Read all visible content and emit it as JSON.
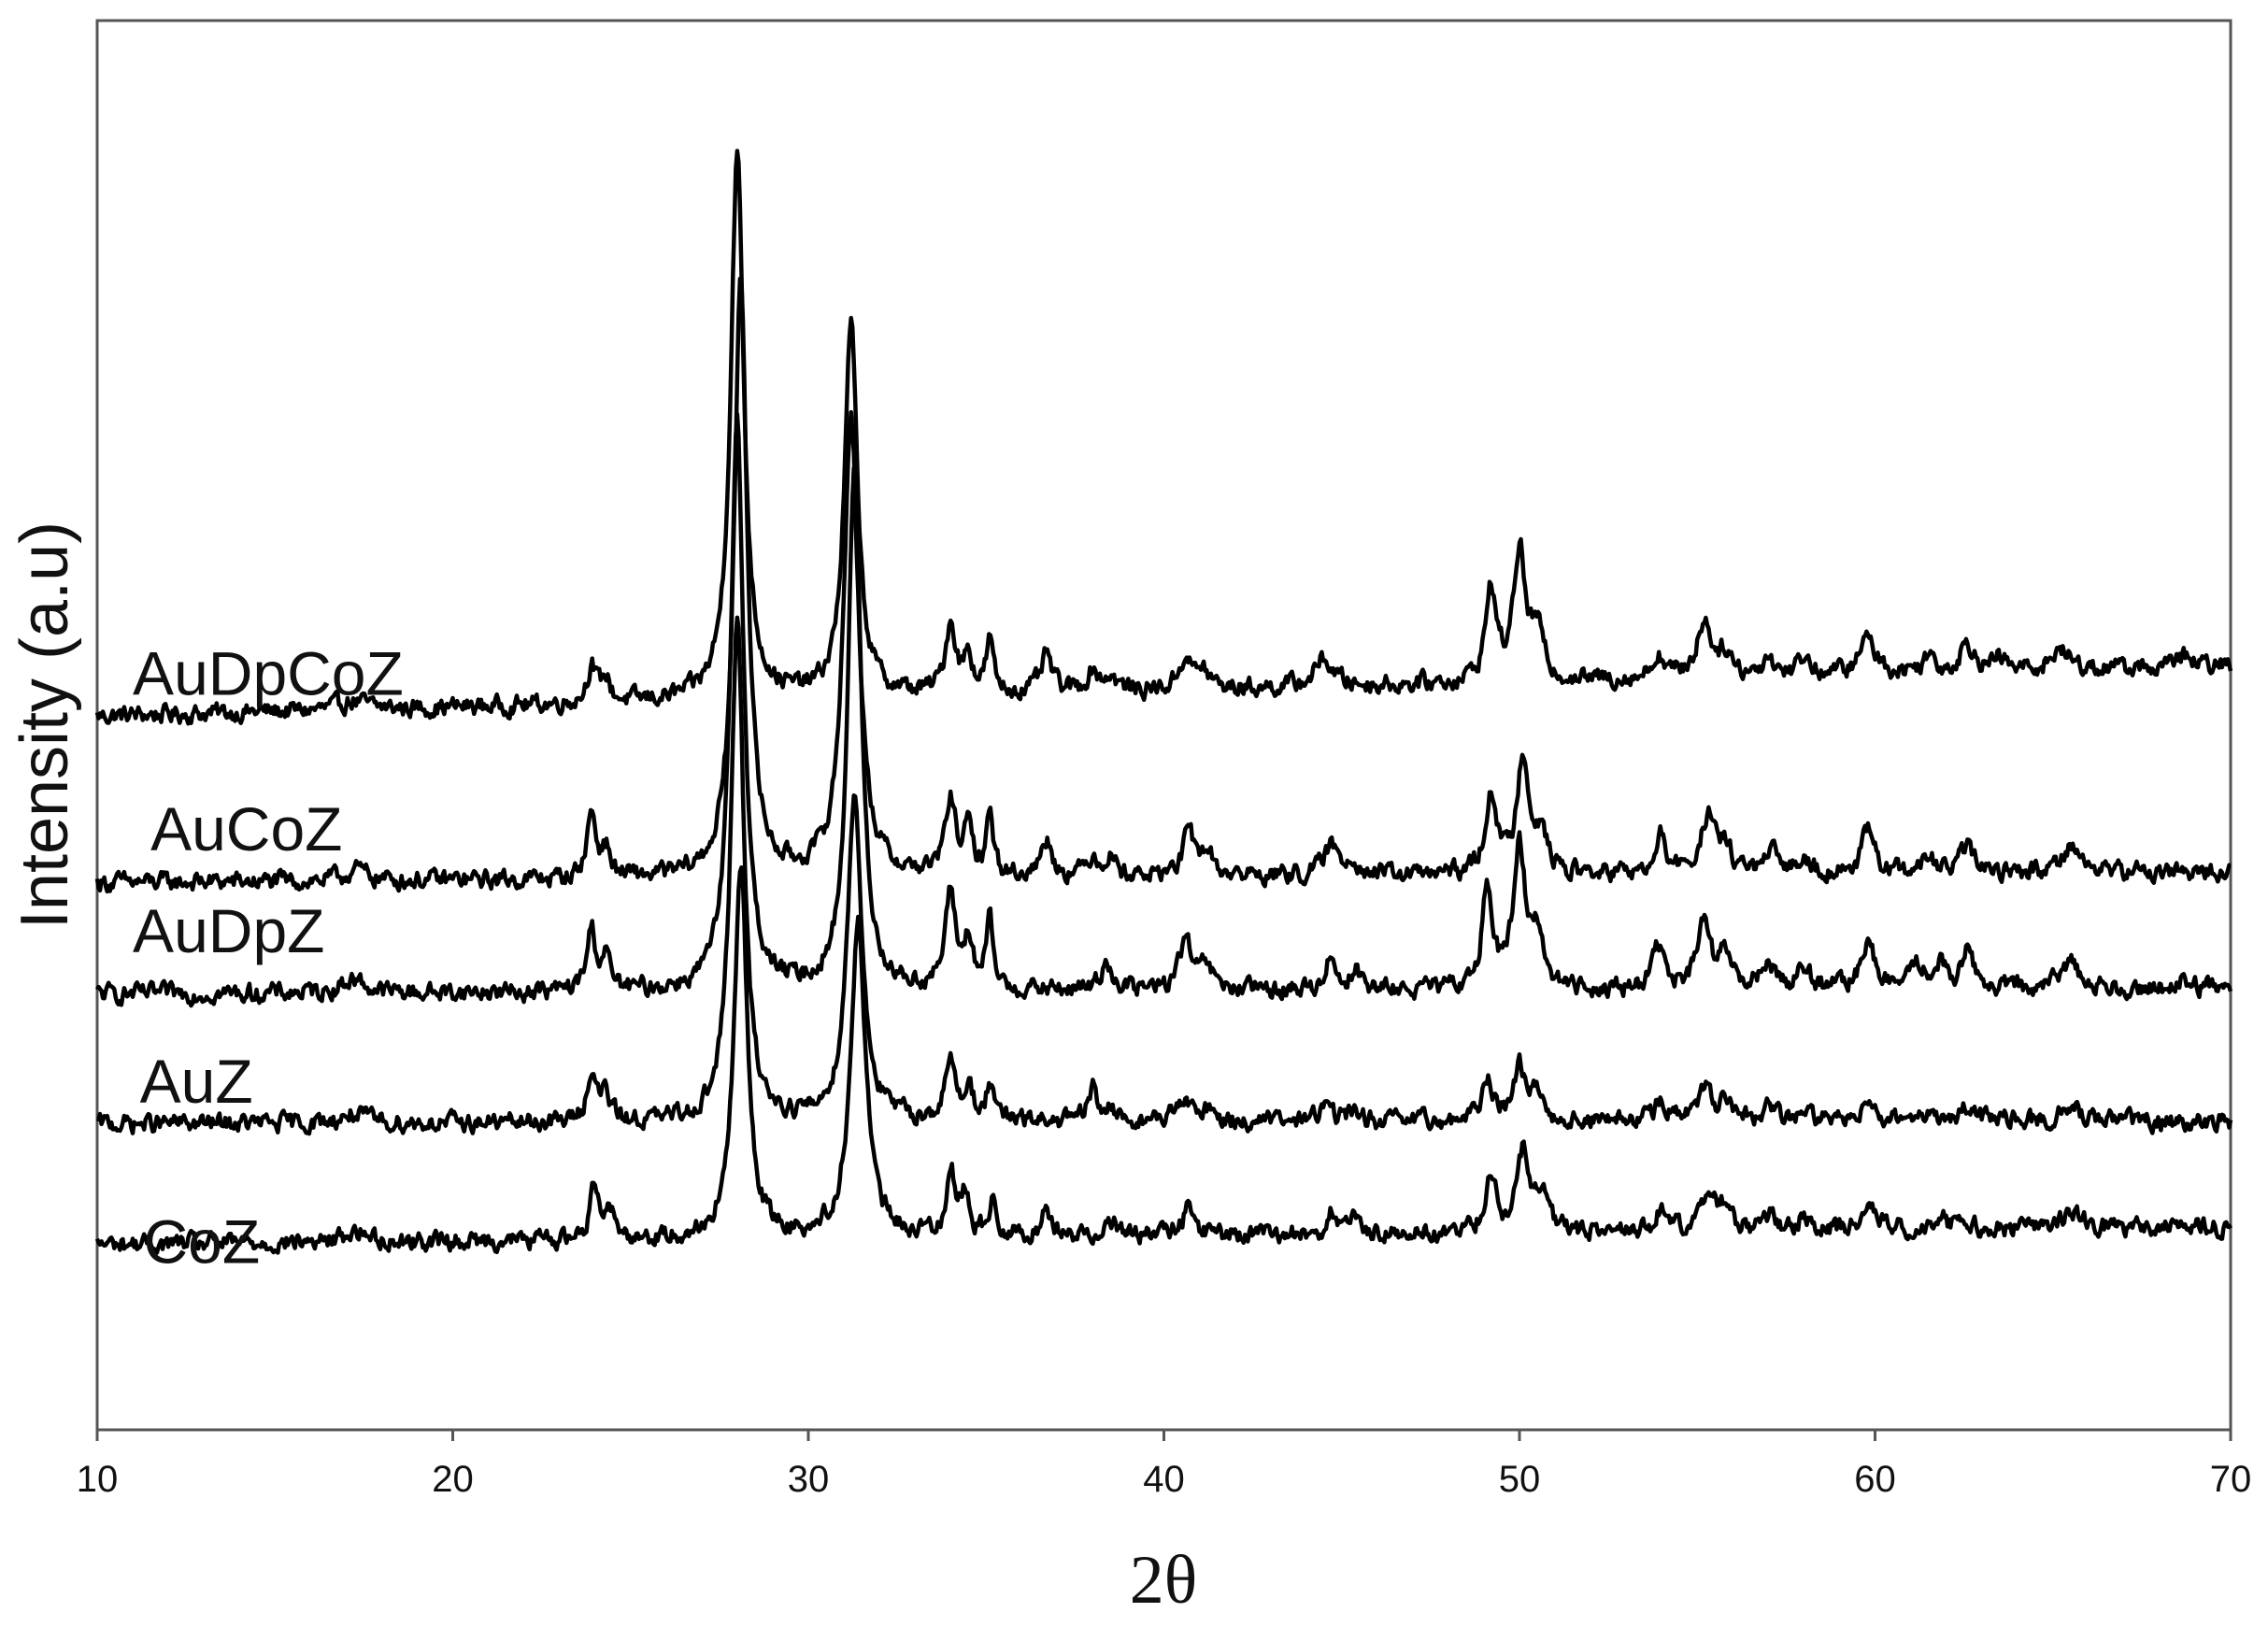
{
  "chart_data": {
    "type": "line",
    "title": "",
    "xlabel": "2θ",
    "ylabel": "Intensity (a.u)",
    "xlim": [
      10,
      70
    ],
    "x_ticks": [
      10,
      20,
      30,
      40,
      50,
      60,
      70
    ],
    "x_tick_labels": [
      "10",
      "20",
      "30",
      "40",
      "50",
      "60",
      "70"
    ],
    "y_ticks": [],
    "grid": false,
    "legend": "none",
    "note": "stacked diffraction patterns; y values are relative intensities with per-series vertical offsets",
    "series": [
      {
        "name": "AuDpCoZ",
        "baseline": 770,
        "slope": 0.9,
        "peaks": [
          [
            17.2,
            10,
            0.4
          ],
          [
            23.9,
            40,
            0.15
          ],
          [
            24.3,
            25,
            0.15
          ],
          [
            28.0,
            590,
            0.22
          ],
          [
            31.2,
            400,
            0.22
          ],
          [
            34.0,
            75,
            0.18
          ],
          [
            34.5,
            40,
            0.15
          ],
          [
            35.1,
            55,
            0.12
          ],
          [
            36.7,
            40,
            0.18
          ],
          [
            38.0,
            22,
            0.2
          ],
          [
            38.5,
            15,
            0.2
          ],
          [
            40.6,
            35,
            0.2
          ],
          [
            41.1,
            20,
            0.2
          ],
          [
            44.5,
            30,
            0.3
          ],
          [
            49.2,
            100,
            0.18
          ],
          [
            50.0,
            140,
            0.2
          ],
          [
            50.5,
            50,
            0.2
          ],
          [
            53.9,
            25,
            0.2
          ],
          [
            55.2,
            60,
            0.25
          ],
          [
            55.8,
            25,
            0.2
          ],
          [
            57.0,
            20,
            0.2
          ],
          [
            58.0,
            20,
            0.2
          ],
          [
            59.8,
            40,
            0.25
          ],
          [
            61.5,
            18,
            0.2
          ],
          [
            62.6,
            30,
            0.25
          ],
          [
            63.5,
            12,
            0.2
          ],
          [
            65.2,
            22,
            0.3
          ],
          [
            68.7,
            12,
            0.2
          ]
        ],
        "label_pos": [
          11.0,
          793
        ]
      },
      {
        "name": "AuCoZ",
        "baseline": 590,
        "slope": 0.2,
        "peaks": [
          [
            17.3,
            12,
            0.4
          ],
          [
            23.9,
            70,
            0.15
          ],
          [
            24.3,
            30,
            0.15
          ],
          [
            28.1,
            650,
            0.22
          ],
          [
            31.2,
            500,
            0.25
          ],
          [
            34.0,
            80,
            0.18
          ],
          [
            34.5,
            45,
            0.15
          ],
          [
            35.1,
            65,
            0.12
          ],
          [
            36.7,
            40,
            0.18
          ],
          [
            38.0,
            20,
            0.2
          ],
          [
            38.5,
            20,
            0.2
          ],
          [
            40.7,
            45,
            0.2
          ],
          [
            41.2,
            25,
            0.2
          ],
          [
            44.7,
            30,
            0.25
          ],
          [
            45.3,
            18,
            0.2
          ],
          [
            49.2,
            90,
            0.18
          ],
          [
            50.1,
            130,
            0.2
          ],
          [
            50.6,
            40,
            0.2
          ],
          [
            54.0,
            40,
            0.15
          ],
          [
            55.3,
            60,
            0.25
          ],
          [
            55.8,
            25,
            0.2
          ],
          [
            57.1,
            20,
            0.2
          ],
          [
            58.0,
            20,
            0.2
          ],
          [
            59.8,
            45,
            0.2
          ],
          [
            61.5,
            15,
            0.2
          ],
          [
            62.6,
            25,
            0.25
          ],
          [
            65.5,
            30,
            0.3
          ]
        ],
        "label_pos": [
          11.5,
          625
        ]
      },
      {
        "name": "AuDpZ",
        "baseline": 470,
        "slope": 0.1,
        "peaks": [
          [
            17.2,
            15,
            0.4
          ],
          [
            23.9,
            65,
            0.15
          ],
          [
            24.3,
            35,
            0.15
          ],
          [
            28.0,
            620,
            0.22
          ],
          [
            31.3,
            570,
            0.22
          ],
          [
            34.0,
            100,
            0.18
          ],
          [
            34.5,
            50,
            0.15
          ],
          [
            35.1,
            70,
            0.12
          ],
          [
            38.4,
            30,
            0.2
          ],
          [
            40.6,
            55,
            0.2
          ],
          [
            41.2,
            25,
            0.2
          ],
          [
            44.7,
            40,
            0.15
          ],
          [
            45.4,
            25,
            0.15
          ],
          [
            49.1,
            110,
            0.18
          ],
          [
            50.0,
            150,
            0.2
          ],
          [
            50.5,
            60,
            0.2
          ],
          [
            53.9,
            50,
            0.18
          ],
          [
            55.2,
            70,
            0.22
          ],
          [
            55.8,
            35,
            0.2
          ],
          [
            57.0,
            30,
            0.2
          ],
          [
            58.0,
            25,
            0.2
          ],
          [
            59.8,
            55,
            0.2
          ],
          [
            61.2,
            25,
            0.2
          ],
          [
            61.8,
            25,
            0.2
          ],
          [
            62.6,
            40,
            0.2
          ],
          [
            65.5,
            30,
            0.3
          ],
          [
            68.7,
            10,
            0.2
          ]
        ],
        "label_pos": [
          11.0,
          515
        ]
      },
      {
        "name": "AuZ",
        "baseline": 330,
        "slope": 0.05,
        "peaks": [
          [
            17.2,
            10,
            0.4
          ],
          [
            23.9,
            55,
            0.15
          ],
          [
            24.3,
            30,
            0.15
          ],
          [
            28.0,
            540,
            0.22
          ],
          [
            31.3,
            350,
            0.25
          ],
          [
            34.0,
            60,
            0.18
          ],
          [
            34.5,
            35,
            0.15
          ],
          [
            35.1,
            40,
            0.12
          ],
          [
            38.0,
            35,
            0.15
          ],
          [
            38.5,
            15,
            0.15
          ],
          [
            40.5,
            25,
            0.2
          ],
          [
            41.2,
            15,
            0.2
          ],
          [
            44.5,
            15,
            0.25
          ],
          [
            45.3,
            12,
            0.2
          ],
          [
            49.1,
            45,
            0.18
          ],
          [
            50.0,
            60,
            0.2
          ],
          [
            50.5,
            30,
            0.2
          ],
          [
            54.0,
            25,
            0.18
          ],
          [
            55.2,
            35,
            0.22
          ],
          [
            55.8,
            18,
            0.2
          ],
          [
            57.0,
            15,
            0.2
          ],
          [
            58.0,
            12,
            0.2
          ],
          [
            59.8,
            30,
            0.2
          ],
          [
            61.2,
            12,
            0.2
          ],
          [
            62.6,
            15,
            0.25
          ],
          [
            65.5,
            15,
            0.3
          ]
        ],
        "label_pos": [
          11.2,
          353
        ]
      },
      {
        "name": "CoZ",
        "baseline": 200,
        "slope": 0.3,
        "peaks": [
          [
            17.3,
            12,
            0.4
          ],
          [
            24.0,
            60,
            0.15
          ],
          [
            24.4,
            35,
            0.15
          ],
          [
            28.1,
            400,
            0.22
          ],
          [
            31.4,
            340,
            0.25
          ],
          [
            34.0,
            70,
            0.15
          ],
          [
            34.4,
            40,
            0.15
          ],
          [
            35.2,
            45,
            0.12
          ],
          [
            36.7,
            25,
            0.18
          ],
          [
            38.5,
            18,
            0.2
          ],
          [
            40.7,
            30,
            0.2
          ],
          [
            44.7,
            25,
            0.15
          ],
          [
            45.4,
            15,
            0.15
          ],
          [
            49.2,
            65,
            0.18
          ],
          [
            50.1,
            85,
            0.2
          ],
          [
            50.6,
            40,
            0.2
          ],
          [
            54.0,
            25,
            0.18
          ],
          [
            55.3,
            45,
            0.22
          ],
          [
            55.8,
            25,
            0.2
          ],
          [
            57.1,
            18,
            0.2
          ],
          [
            58.0,
            15,
            0.2
          ],
          [
            59.9,
            30,
            0.2
          ],
          [
            61.8,
            15,
            0.2
          ],
          [
            62.6,
            12,
            0.2
          ],
          [
            65.5,
            20,
            0.3
          ]
        ],
        "label_pos": [
          11.3,
          180
        ]
      }
    ]
  }
}
